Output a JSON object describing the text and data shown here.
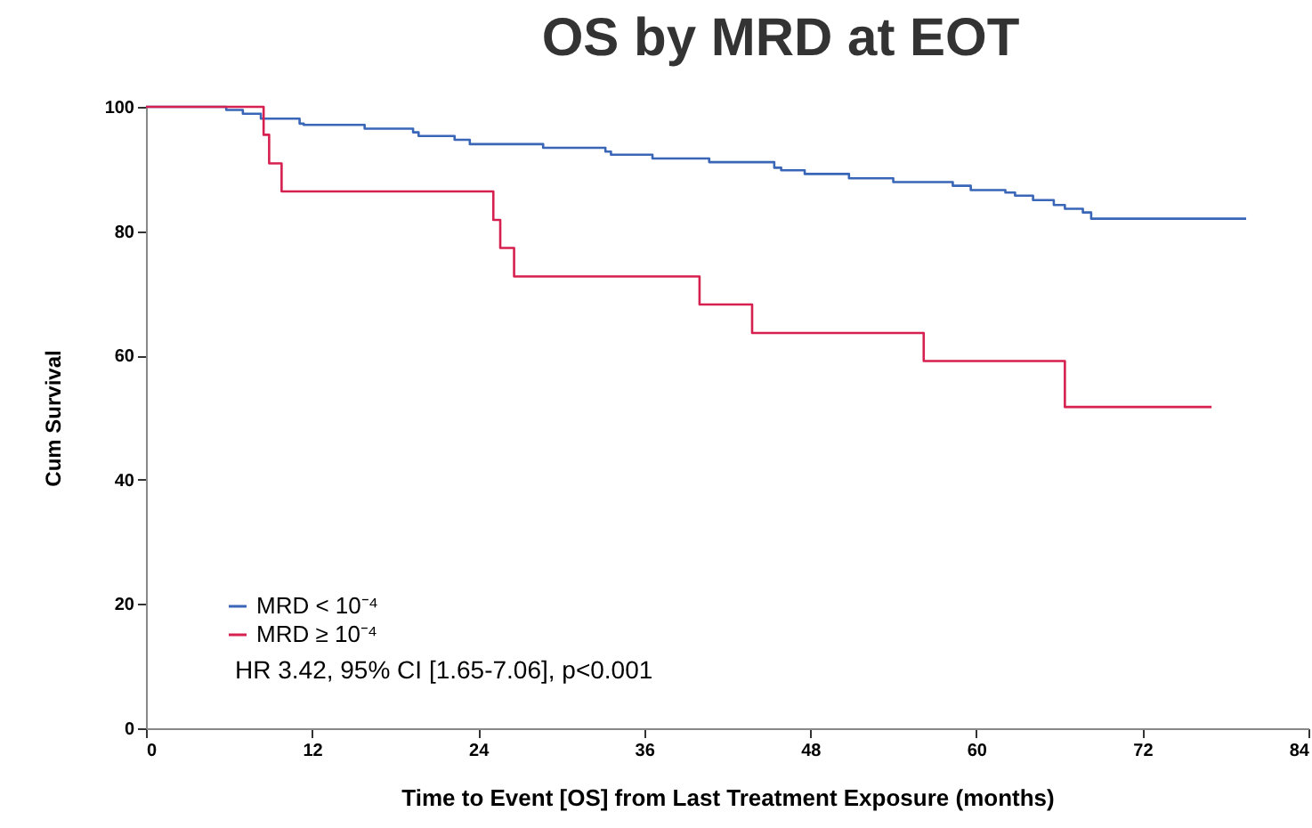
{
  "chart_data": {
    "type": "step",
    "title": "OS by MRD at EOT",
    "xlabel": "Time to Event [OS] from Last Treatment Exposure (months)",
    "ylabel": "Cum Survival",
    "xlim": [
      0,
      84
    ],
    "xticks": [
      0,
      12,
      24,
      36,
      48,
      60,
      72,
      84
    ],
    "ylim": [
      0,
      100
    ],
    "yticks": [
      0,
      20,
      40,
      60,
      80,
      100
    ],
    "grid": false,
    "legend": "bottom left",
    "annotations": [
      "HR 3.42, 95% CI [1.65-7.06], p<0.001"
    ],
    "series": [
      {
        "name": "MRD < 10⁻⁴",
        "color": "#3a66b8",
        "x": [
          0,
          5.8,
          7.0,
          8.3,
          11.1,
          11.4,
          15.8,
          19.3,
          19.7,
          22.3,
          23.4,
          28.7,
          33.2,
          33.6,
          36.6,
          40.7,
          45.4,
          45.9,
          47.6,
          50.8,
          54.0,
          58.3,
          59.6,
          62.1,
          62.8,
          64.1,
          65.6,
          66.4,
          67.7,
          68.3,
          79.5
        ],
        "values": [
          100,
          99.5,
          98.9,
          98.1,
          97.3,
          97.1,
          96.5,
          95.9,
          95.3,
          94.7,
          94.0,
          93.4,
          92.8,
          92.3,
          91.7,
          91.1,
          90.2,
          89.8,
          89.2,
          88.5,
          87.9,
          87.3,
          86.6,
          86.2,
          85.7,
          85.0,
          84.2,
          83.6,
          83.0,
          82.0,
          82.0
        ]
      },
      {
        "name": "MRD ≥ 10⁻⁴",
        "color": "#d6204f",
        "x": [
          0,
          8.5,
          8.9,
          9.8,
          25.1,
          25.6,
          26.6,
          40.0,
          43.8,
          56.2,
          66.4,
          77.0
        ],
        "values": [
          100,
          95.5,
          90.9,
          86.4,
          81.8,
          77.3,
          72.7,
          68.2,
          63.6,
          59.1,
          51.7,
          51.7
        ]
      }
    ]
  }
}
